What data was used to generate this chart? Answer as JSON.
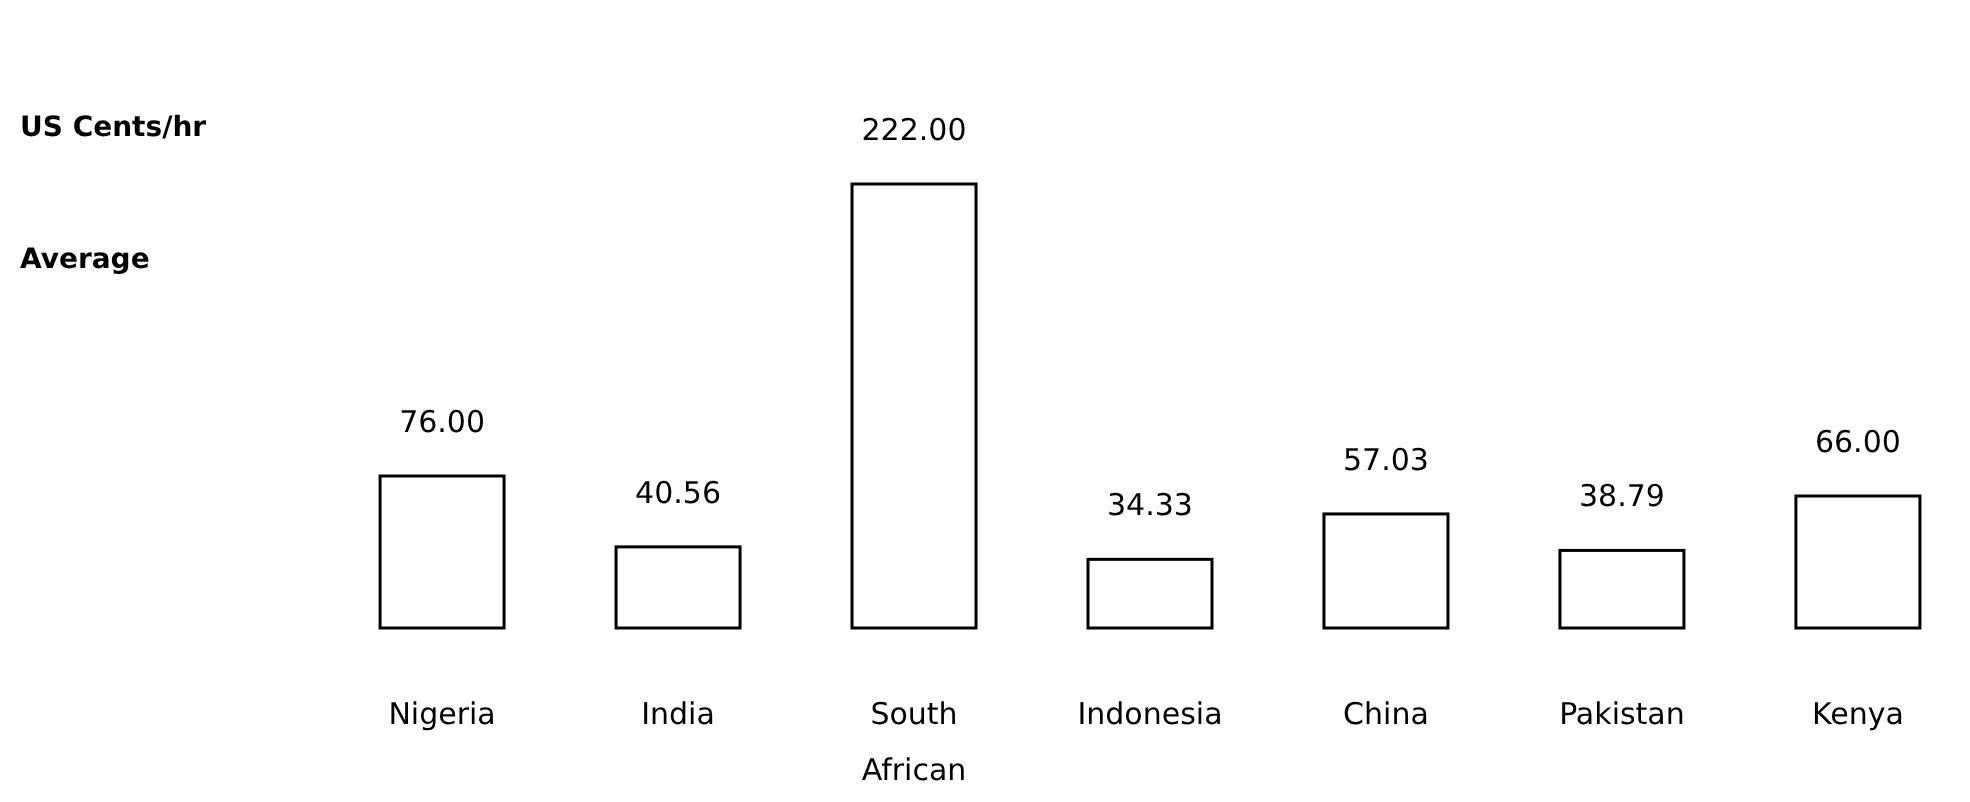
{
  "chart_data": {
    "type": "bar",
    "title": "US Cents/hr",
    "subtitle": "Average",
    "categories": [
      "Nigeria",
      "India",
      "South African",
      "Indonesia",
      "China",
      "Pakistan",
      "Kenya"
    ],
    "values": [
      76.0,
      40.56,
      222.0,
      34.33,
      57.03,
      38.79,
      66.0
    ],
    "value_labels": [
      "76.00",
      "40.56",
      "222.00",
      "34.33",
      "57.03",
      "38.79",
      "66.00"
    ],
    "color": "#ffffff"
  }
}
